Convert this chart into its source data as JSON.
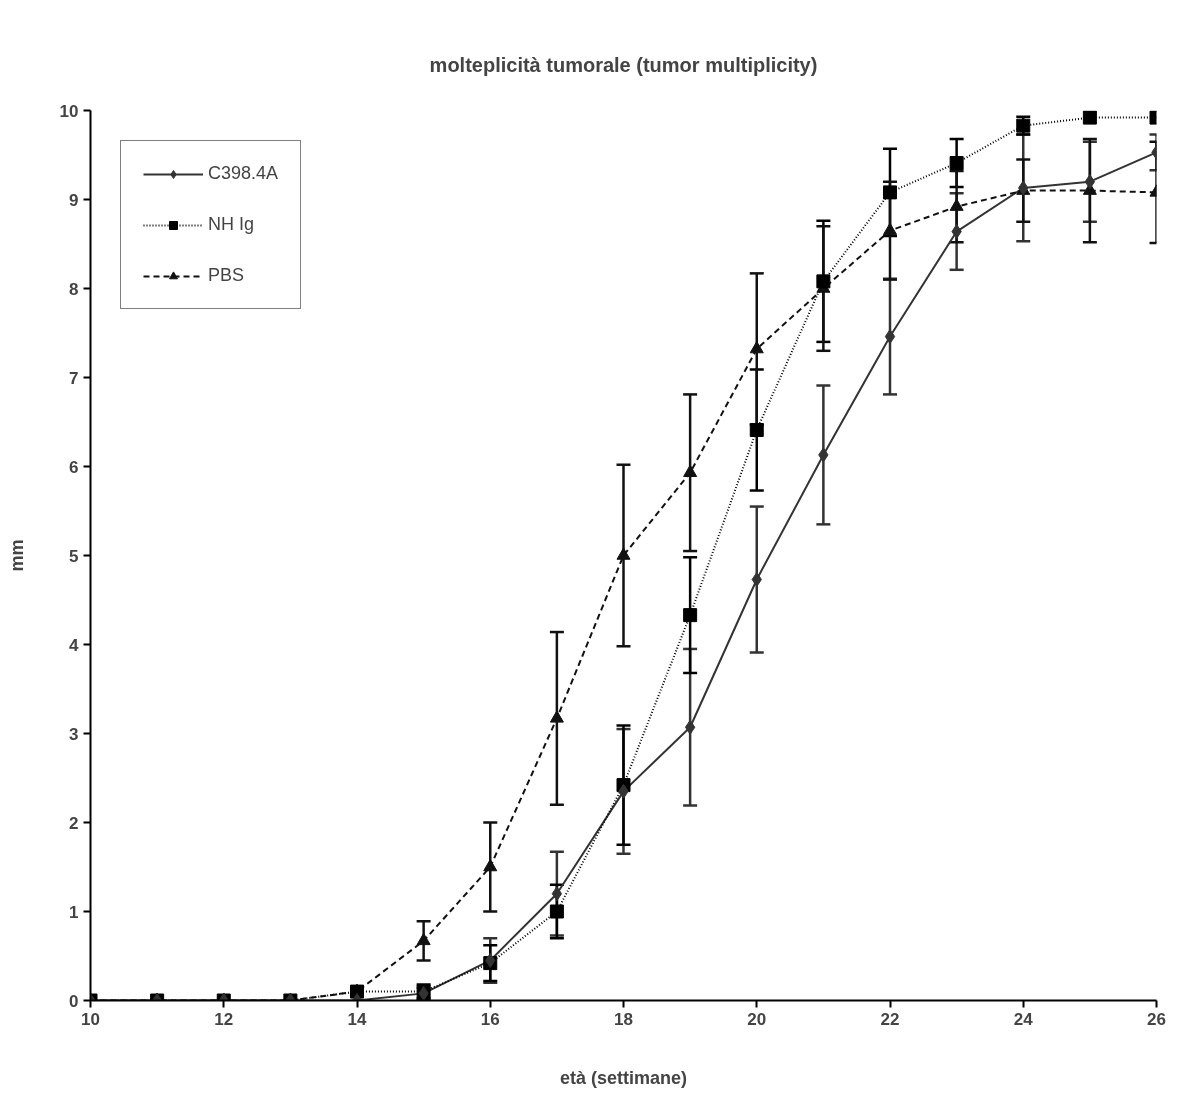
{
  "chart_data": {
    "type": "line",
    "title": "molteplicità tumorale (tumor multiplicity)",
    "xlabel": "età (settimane)",
    "ylabel": "mm",
    "x": [
      10,
      11,
      12,
      13,
      14,
      15,
      16,
      17,
      18,
      19,
      20,
      21,
      22,
      23,
      24,
      25,
      26
    ],
    "xlim": [
      10,
      26
    ],
    "xticks": [
      10,
      12,
      14,
      16,
      18,
      20,
      22,
      24,
      26
    ],
    "ylim": [
      0,
      10
    ],
    "yticks": [
      0,
      1,
      2,
      3,
      4,
      5,
      6,
      7,
      8,
      9,
      10
    ],
    "grid": false,
    "legend": "top left",
    "series": [
      {
        "name": "C398.4A",
        "color": "#333333",
        "marker": "diamond",
        "line_style": "solid",
        "values": [
          0,
          0,
          0,
          0,
          0,
          0.08,
          0.45,
          1.2,
          2.35,
          3.07,
          4.73,
          6.13,
          7.46,
          8.64,
          9.13,
          9.2,
          9.53
        ],
        "errors": [
          null,
          null,
          null,
          null,
          null,
          0.06,
          0.25,
          0.47,
          0.7,
          0.88,
          0.82,
          0.78,
          0.65,
          0.43,
          0.6,
          0.45,
          0.2
        ]
      },
      {
        "name": "NH Ig",
        "color": "#000000",
        "marker": "square",
        "line_style": "dotted",
        "values": [
          0,
          0,
          0,
          0,
          0.1,
          0.1,
          0.42,
          1.0,
          2.42,
          4.33,
          6.41,
          8.08,
          9.08,
          9.41,
          9.83,
          9.92,
          9.92
        ],
        "errors": [
          null,
          null,
          null,
          null,
          null,
          0.08,
          0.2,
          0.3,
          0.67,
          0.65,
          0.68,
          0.68,
          0.49,
          0.27,
          0.1,
          null,
          null
        ]
      },
      {
        "name": "PBS",
        "color": "#111111",
        "marker": "triangle",
        "line_style": "dashed",
        "values": [
          0,
          0,
          0,
          0,
          0.1,
          0.67,
          1.5,
          3.17,
          5.0,
          5.93,
          7.32,
          8.0,
          8.65,
          8.92,
          9.1,
          9.1,
          9.08
        ],
        "errors": [
          null,
          null,
          null,
          null,
          null,
          0.22,
          0.5,
          0.97,
          1.02,
          0.88,
          0.85,
          0.7,
          0.55,
          0.4,
          0.35,
          0.58,
          0.57
        ]
      }
    ]
  }
}
